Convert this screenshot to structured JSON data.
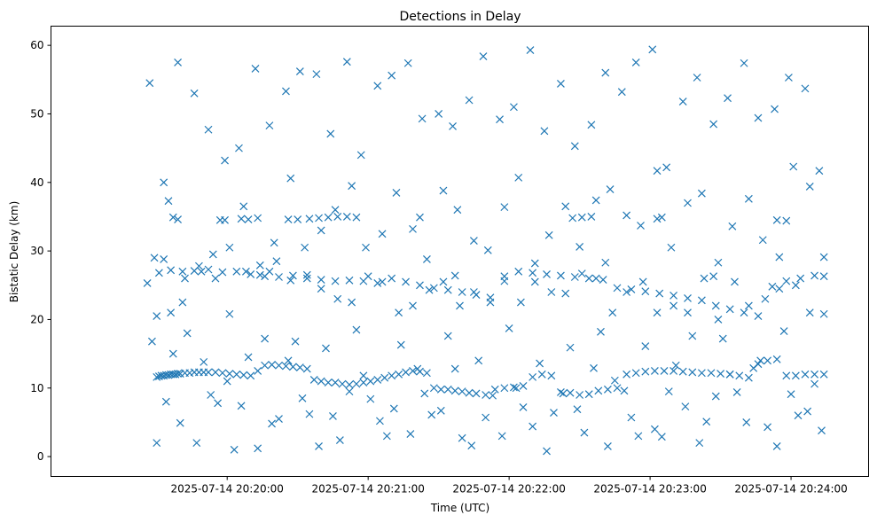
{
  "chart_data": {
    "type": "scatter",
    "title": "Detections in Delay",
    "xlabel": "Time (UTC)",
    "ylabel": "Bistatic Delay (km)",
    "x_unit": "time (UTC)",
    "xlim": [
      "2025-07-14 20:18:45",
      "2025-07-14 20:24:33"
    ],
    "ylim": [
      -2.9,
      62.8
    ],
    "x_ticks": [
      "2025-07-14 20:20:00",
      "2025-07-14 20:21:00",
      "2025-07-14 20:22:00",
      "2025-07-14 20:23:00",
      "2025-07-14 20:24:00"
    ],
    "y_ticks": [
      0,
      10,
      20,
      30,
      40,
      50,
      60
    ],
    "grid": false,
    "marker": "x",
    "color": "#1f77b4",
    "series": [
      {
        "x": [
          "2025-07-14 20:19:30",
          "2025-07-14 20:19:31",
          "2025-07-14 20:19:32",
          "2025-07-14 20:19:33",
          "2025-07-14 20:19:34",
          "2025-07-14 20:19:35",
          "2025-07-14 20:19:36",
          "2025-07-14 20:19:37",
          "2025-07-14 20:19:38",
          "2025-07-14 20:19:39",
          "2025-07-14 20:19:40",
          "2025-07-14 20:19:42",
          "2025-07-14 20:19:44",
          "2025-07-14 20:19:46",
          "2025-07-14 20:19:48",
          "2025-07-14 20:19:50",
          "2025-07-14 20:19:52",
          "2025-07-14 20:19:55",
          "2025-07-14 20:19:58",
          "2025-07-14 20:20:01",
          "2025-07-14 20:20:04",
          "2025-07-14 20:20:07",
          "2025-07-14 20:20:10",
          "2025-07-14 20:20:13",
          "2025-07-14 20:20:16",
          "2025-07-14 20:20:19",
          "2025-07-14 20:20:22",
          "2025-07-14 20:20:25",
          "2025-07-14 20:20:28",
          "2025-07-14 20:20:31",
          "2025-07-14 20:20:34",
          "2025-07-14 20:20:37",
          "2025-07-14 20:20:40",
          "2025-07-14 20:20:43",
          "2025-07-14 20:20:46",
          "2025-07-14 20:20:49",
          "2025-07-14 20:20:52",
          "2025-07-14 20:20:55",
          "2025-07-14 20:20:58",
          "2025-07-14 20:21:01",
          "2025-07-14 20:21:04",
          "2025-07-14 20:21:07",
          "2025-07-14 20:21:10",
          "2025-07-14 20:21:13",
          "2025-07-14 20:21:16",
          "2025-07-14 20:21:19",
          "2025-07-14 20:21:22",
          "2025-07-14 20:21:25",
          "2025-07-14 20:21:28",
          "2025-07-14 20:21:31",
          "2025-07-14 20:21:34",
          "2025-07-14 20:21:37",
          "2025-07-14 20:21:40",
          "2025-07-14 20:21:43",
          "2025-07-14 20:21:46",
          "2025-07-14 20:21:50",
          "2025-07-14 20:21:54",
          "2025-07-14 20:21:58",
          "2025-07-14 20:22:02",
          "2025-07-14 20:22:06",
          "2025-07-14 20:22:10",
          "2025-07-14 20:22:14",
          "2025-07-14 20:22:18",
          "2025-07-14 20:22:22",
          "2025-07-14 20:22:26",
          "2025-07-14 20:22:30",
          "2025-07-14 20:22:34",
          "2025-07-14 20:22:38",
          "2025-07-14 20:22:42",
          "2025-07-14 20:22:46",
          "2025-07-14 20:22:50",
          "2025-07-14 20:22:54",
          "2025-07-14 20:22:58",
          "2025-07-14 20:23:02",
          "2025-07-14 20:23:06",
          "2025-07-14 20:23:10",
          "2025-07-14 20:23:14",
          "2025-07-14 20:23:18",
          "2025-07-14 20:23:22",
          "2025-07-14 20:23:26",
          "2025-07-14 20:23:30",
          "2025-07-14 20:23:34",
          "2025-07-14 20:23:38",
          "2025-07-14 20:23:42",
          "2025-07-14 20:23:46",
          "2025-07-14 20:23:50",
          "2025-07-14 20:23:54",
          "2025-07-14 20:23:58",
          "2025-07-14 20:24:02",
          "2025-07-14 20:24:06",
          "2025-07-14 20:24:10",
          "2025-07-14 20:24:14",
          "2025-07-14 20:19:31",
          "2025-07-14 20:19:36",
          "2025-07-14 20:19:41",
          "2025-07-14 20:19:46",
          "2025-07-14 20:19:52",
          "2025-07-14 20:19:58",
          "2025-07-14 20:20:04",
          "2025-07-14 20:20:10",
          "2025-07-14 20:20:16",
          "2025-07-14 20:20:22",
          "2025-07-14 20:20:28",
          "2025-07-14 20:20:34",
          "2025-07-14 20:20:40",
          "2025-07-14 20:20:46",
          "2025-07-14 20:20:52",
          "2025-07-14 20:20:58",
          "2025-07-14 20:21:04",
          "2025-07-14 20:21:10",
          "2025-07-14 20:21:16",
          "2025-07-14 20:21:22",
          "2025-07-14 20:21:28",
          "2025-07-14 20:21:34",
          "2025-07-14 20:21:40",
          "2025-07-14 20:21:46",
          "2025-07-14 20:21:52",
          "2025-07-14 20:21:58",
          "2025-07-14 20:22:04",
          "2025-07-14 20:22:10",
          "2025-07-14 20:22:16",
          "2025-07-14 20:22:22",
          "2025-07-14 20:22:28",
          "2025-07-14 20:22:34",
          "2025-07-14 20:22:40",
          "2025-07-14 20:22:46",
          "2025-07-14 20:22:52",
          "2025-07-14 20:22:58",
          "2025-07-14 20:23:04",
          "2025-07-14 20:23:10",
          "2025-07-14 20:23:16",
          "2025-07-14 20:23:22",
          "2025-07-14 20:23:28",
          "2025-07-14 20:23:34",
          "2025-07-14 20:23:40",
          "2025-07-14 20:23:46",
          "2025-07-14 20:23:52",
          "2025-07-14 20:23:58",
          "2025-07-14 20:24:04",
          "2025-07-14 20:24:10",
          "2025-07-14 20:24:14",
          "2025-07-14 20:19:37",
          "2025-07-14 20:19:39",
          "2025-07-14 20:19:57",
          "2025-07-14 20:19:59",
          "2025-07-14 20:20:06",
          "2025-07-14 20:20:09",
          "2025-07-14 20:20:13",
          "2025-07-14 20:20:26",
          "2025-07-14 20:20:30",
          "2025-07-14 20:20:35",
          "2025-07-14 20:20:39",
          "2025-07-14 20:20:43",
          "2025-07-14 20:20:47",
          "2025-07-14 20:20:51",
          "2025-07-14 20:20:55",
          "2025-07-14 20:21:22",
          "2025-07-14 20:22:27",
          "2025-07-14 20:22:31",
          "2025-07-14 20:22:35",
          "2025-07-14 20:23:03",
          "2025-07-14 20:23:05",
          "2025-07-14 20:23:54",
          "2025-07-14 20:23:58",
          "2025-07-14 20:19:26",
          "2025-07-14 20:19:30",
          "2025-07-14 20:19:36",
          "2025-07-14 20:19:42",
          "2025-07-14 20:19:49",
          "2025-07-14 20:19:55",
          "2025-07-14 20:20:01",
          "2025-07-14 20:20:08",
          "2025-07-14 20:20:14",
          "2025-07-14 20:20:21",
          "2025-07-14 20:20:27",
          "2025-07-14 20:20:34",
          "2025-07-14 20:20:40",
          "2025-07-14 20:20:47",
          "2025-07-14 20:20:53",
          "2025-07-14 20:21:00",
          "2025-07-14 20:21:06",
          "2025-07-14 20:21:13",
          "2025-07-14 20:21:19",
          "2025-07-14 20:21:26",
          "2025-07-14 20:21:32",
          "2025-07-14 20:21:39",
          "2025-07-14 20:21:45",
          "2025-07-14 20:21:52",
          "2025-07-14 20:21:58",
          "2025-07-14 20:22:05",
          "2025-07-14 20:22:11",
          "2025-07-14 20:22:18",
          "2025-07-14 20:22:24",
          "2025-07-14 20:22:31",
          "2025-07-14 20:22:37",
          "2025-07-14 20:22:44",
          "2025-07-14 20:22:50",
          "2025-07-14 20:22:57",
          "2025-07-14 20:23:03",
          "2025-07-14 20:23:10",
          "2025-07-14 20:23:16",
          "2025-07-14 20:23:23",
          "2025-07-14 20:23:29",
          "2025-07-14 20:23:36",
          "2025-07-14 20:23:42",
          "2025-07-14 20:23:49",
          "2025-07-14 20:23:55",
          "2025-07-14 20:24:02",
          "2025-07-14 20:24:08",
          "2025-07-14 20:24:14",
          "2025-07-14 20:19:33",
          "2025-07-14 20:20:18",
          "2025-07-14 20:21:37",
          "2025-07-14 20:22:41",
          "2025-07-14 20:23:27",
          "2025-07-14 20:19:28",
          "2025-07-14 20:19:34",
          "2025-07-14 20:19:40",
          "2025-07-14 20:19:47",
          "2025-07-14 20:19:53",
          "2025-07-14 20:20:00",
          "2025-07-14 20:20:06",
          "2025-07-14 20:20:13",
          "2025-07-14 20:20:19",
          "2025-07-14 20:20:26",
          "2025-07-14 20:20:32",
          "2025-07-14 20:20:39",
          "2025-07-14 20:20:45",
          "2025-07-14 20:20:52",
          "2025-07-14 20:20:58",
          "2025-07-14 20:21:05",
          "2025-07-14 20:21:11",
          "2025-07-14 20:21:18",
          "2025-07-14 20:21:24",
          "2025-07-14 20:21:31",
          "2025-07-14 20:21:37",
          "2025-07-14 20:21:44",
          "2025-07-14 20:21:50",
          "2025-07-14 20:21:57",
          "2025-07-14 20:22:03",
          "2025-07-14 20:22:10",
          "2025-07-14 20:22:16",
          "2025-07-14 20:22:23",
          "2025-07-14 20:22:29",
          "2025-07-14 20:22:36",
          "2025-07-14 20:22:42",
          "2025-07-14 20:22:49",
          "2025-07-14 20:22:55",
          "2025-07-14 20:23:02",
          "2025-07-14 20:23:08",
          "2025-07-14 20:23:15",
          "2025-07-14 20:23:21",
          "2025-07-14 20:23:28",
          "2025-07-14 20:23:34",
          "2025-07-14 20:23:41",
          "2025-07-14 20:23:47",
          "2025-07-14 20:23:54",
          "2025-07-14 20:24:00",
          "2025-07-14 20:24:07",
          "2025-07-14 20:24:13",
          "2025-07-14 20:19:29",
          "2025-07-14 20:19:35",
          "2025-07-14 20:19:41",
          "2025-07-14 20:19:48",
          "2025-07-14 20:19:54",
          "2025-07-14 20:20:01",
          "2025-07-14 20:20:07",
          "2025-07-14 20:20:14",
          "2025-07-14 20:20:20",
          "2025-07-14 20:20:27",
          "2025-07-14 20:20:33",
          "2025-07-14 20:20:40",
          "2025-07-14 20:20:46",
          "2025-07-14 20:20:53",
          "2025-07-14 20:20:59",
          "2025-07-14 20:21:06",
          "2025-07-14 20:21:12",
          "2025-07-14 20:21:19",
          "2025-07-14 20:21:25",
          "2025-07-14 20:21:32",
          "2025-07-14 20:21:38",
          "2025-07-14 20:21:45",
          "2025-07-14 20:21:51",
          "2025-07-14 20:21:58",
          "2025-07-14 20:22:04",
          "2025-07-14 20:22:11",
          "2025-07-14 20:22:17",
          "2025-07-14 20:22:24",
          "2025-07-14 20:22:30",
          "2025-07-14 20:22:37",
          "2025-07-14 20:22:43",
          "2025-07-14 20:22:50",
          "2025-07-14 20:22:56",
          "2025-07-14 20:23:03",
          "2025-07-14 20:23:09",
          "2025-07-14 20:23:16",
          "2025-07-14 20:23:22",
          "2025-07-14 20:23:29",
          "2025-07-14 20:23:35",
          "2025-07-14 20:23:42",
          "2025-07-14 20:23:48",
          "2025-07-14 20:23:55",
          "2025-07-14 20:24:01",
          "2025-07-14 20:24:08",
          "2025-07-14 20:24:14",
          "2025-07-14 20:19:27",
          "2025-07-14 20:19:33",
          "2025-07-14 20:19:39",
          "2025-07-14 20:19:46",
          "2025-07-14 20:19:52",
          "2025-07-14 20:19:59",
          "2025-07-14 20:20:05",
          "2025-07-14 20:20:12",
          "2025-07-14 20:20:18",
          "2025-07-14 20:20:25",
          "2025-07-14 20:20:31",
          "2025-07-14 20:20:38",
          "2025-07-14 20:20:44",
          "2025-07-14 20:20:51",
          "2025-07-14 20:20:57",
          "2025-07-14 20:21:04",
          "2025-07-14 20:21:10",
          "2025-07-14 20:21:17",
          "2025-07-14 20:21:23",
          "2025-07-14 20:21:30",
          "2025-07-14 20:21:36",
          "2025-07-14 20:21:43",
          "2025-07-14 20:21:49",
          "2025-07-14 20:21:56",
          "2025-07-14 20:22:02",
          "2025-07-14 20:22:09",
          "2025-07-14 20:22:15",
          "2025-07-14 20:22:22",
          "2025-07-14 20:22:28",
          "2025-07-14 20:22:35",
          "2025-07-14 20:22:41",
          "2025-07-14 20:22:48",
          "2025-07-14 20:22:54",
          "2025-07-14 20:23:01",
          "2025-07-14 20:23:07",
          "2025-07-14 20:23:14",
          "2025-07-14 20:23:20",
          "2025-07-14 20:23:27",
          "2025-07-14 20:23:33",
          "2025-07-14 20:23:40",
          "2025-07-14 20:23:46",
          "2025-07-14 20:23:53",
          "2025-07-14 20:23:59",
          "2025-07-14 20:24:06",
          "2025-07-14 20:24:12",
          "2025-07-14 20:19:30",
          "2025-07-14 20:19:37",
          "2025-07-14 20:19:43",
          "2025-07-14 20:19:50",
          "2025-07-14 20:19:56",
          "2025-07-14 20:20:03",
          "2025-07-14 20:20:09",
          "2025-07-14 20:20:16",
          "2025-07-14 20:20:22",
          "2025-07-14 20:20:29",
          "2025-07-14 20:20:35",
          "2025-07-14 20:20:42",
          "2025-07-14 20:20:48",
          "2025-07-14 20:20:55",
          "2025-07-14 20:21:01",
          "2025-07-14 20:21:08",
          "2025-07-14 20:21:14",
          "2025-07-14 20:21:21",
          "2025-07-14 20:21:27",
          "2025-07-14 20:21:34",
          "2025-07-14 20:21:40",
          "2025-07-14 20:21:47",
          "2025-07-14 20:21:53",
          "2025-07-14 20:22:00",
          "2025-07-14 20:22:06",
          "2025-07-14 20:22:13",
          "2025-07-14 20:22:19",
          "2025-07-14 20:22:26",
          "2025-07-14 20:22:32",
          "2025-07-14 20:22:39",
          "2025-07-14 20:22:45",
          "2025-07-14 20:22:52",
          "2025-07-14 20:22:58",
          "2025-07-14 20:23:05",
          "2025-07-14 20:23:11",
          "2025-07-14 20:23:18",
          "2025-07-14 20:23:24",
          "2025-07-14 20:23:31",
          "2025-07-14 20:23:37",
          "2025-07-14 20:23:44",
          "2025-07-14 20:23:50",
          "2025-07-14 20:23:57",
          "2025-07-14 20:24:03",
          "2025-07-14 20:24:10"
        ],
        "y": [
          11.6,
          11.7,
          11.8,
          11.8,
          11.9,
          11.9,
          12.0,
          12.0,
          12.0,
          12.1,
          12.1,
          12.2,
          12.2,
          12.3,
          12.3,
          12.3,
          12.3,
          12.3,
          12.2,
          12.1,
          12.0,
          11.9,
          11.8,
          12.5,
          13.3,
          13.4,
          13.3,
          13.2,
          13.1,
          13.0,
          12.8,
          11.2,
          11.0,
          10.8,
          10.8,
          10.6,
          10.5,
          10.6,
          10.8,
          11.0,
          11.2,
          11.5,
          11.8,
          12.0,
          12.3,
          12.5,
          12.4,
          12.2,
          10.0,
          9.8,
          9.8,
          9.6,
          9.5,
          9.3,
          9.2,
          9.0,
          9.8,
          10.0,
          10.1,
          10.3,
          11.6,
          12.0,
          11.8,
          9.4,
          9.3,
          9.0,
          9.1,
          9.6,
          9.8,
          10.0,
          12.0,
          12.2,
          12.4,
          12.5,
          12.5,
          12.5,
          12.4,
          12.3,
          12.2,
          12.2,
          12.1,
          12.0,
          11.8,
          11.5,
          13.5,
          14.0,
          14.2,
          11.8,
          11.8,
          12.0,
          12.0,
          12.0,
          26.8,
          27.2,
          27.0,
          27.1,
          27.3,
          26.9,
          27.0,
          26.6,
          26.3,
          26.2,
          26.4,
          26.0,
          25.8,
          25.6,
          25.7,
          25.6,
          25.3,
          26.0,
          25.5,
          25.0,
          24.6,
          24.3,
          24.0,
          23.6,
          23.2,
          25.6,
          27.0,
          26.8,
          26.6,
          26.4,
          26.2,
          26.0,
          25.8,
          24.6,
          24.4,
          24.1,
          23.8,
          23.5,
          23.1,
          22.8,
          22.0,
          21.5,
          21.0,
          20.5,
          24.8,
          25.6,
          26.0,
          26.4,
          26.3,
          34.9,
          34.6,
          34.5,
          34.5,
          34.7,
          34.6,
          34.8,
          34.6,
          34.6,
          34.7,
          34.8,
          34.9,
          35.0,
          35.0,
          34.9,
          34.9,
          34.8,
          34.9,
          35.0,
          34.7,
          34.9,
          34.5,
          34.4,
          25.3,
          20.5,
          21.0,
          26.0,
          27.0,
          26.0,
          20.8,
          27.0,
          26.5,
          28.5,
          25.7,
          26.5,
          24.5,
          23.0,
          22.5,
          26.3,
          25.5,
          21.0,
          22.0,
          24.3,
          25.5,
          22.0,
          24.0,
          22.5,
          26.3,
          22.5,
          25.5,
          24.0,
          23.8,
          26.7,
          26.0,
          21.0,
          24.0,
          25.5,
          21.0,
          22.0,
          21.0,
          26.0,
          20.0,
          25.5,
          22.0,
          23.0,
          24.5,
          25.0,
          21.0,
          20.8,
          28.8,
          27.0,
          26.4,
          28.3,
          26.3,
          16.8,
          8.0,
          4.9,
          2.0,
          9.0,
          11.0,
          7.4,
          1.2,
          4.8,
          14.0,
          8.5,
          1.5,
          5.9,
          9.5,
          11.8,
          5.2,
          7.0,
          3.3,
          9.2,
          6.7,
          12.8,
          1.6,
          5.7,
          3.0,
          10.0,
          4.4,
          0.8,
          9.2,
          6.9,
          12.9,
          1.5,
          9.6,
          3.0,
          4.0,
          9.5,
          7.3,
          2.0,
          8.8,
          12.0,
          5.0,
          14.0,
          1.5,
          9.1,
          6.6,
          3.8,
          29.0,
          37.3,
          22.5,
          27.8,
          29.5,
          30.5,
          36.5,
          27.9,
          31.2,
          40.6,
          30.5,
          33.0,
          36.0,
          39.5,
          30.5,
          32.5,
          38.5,
          33.2,
          28.8,
          38.8,
          36.0,
          31.5,
          30.1,
          36.4,
          40.7,
          28.2,
          32.3,
          36.5,
          30.6,
          37.4,
          39.0,
          35.2,
          33.7,
          41.7,
          30.5,
          37.0,
          38.4,
          28.3,
          33.6,
          37.6,
          31.6,
          29.1,
          42.3,
          39.4,
          29.1,
          54.5,
          40.0,
          57.5,
          53.0,
          47.7,
          43.2,
          45.0,
          56.6,
          48.3,
          53.3,
          56.2,
          55.8,
          47.1,
          57.6,
          44.0,
          54.1,
          55.6,
          57.4,
          49.3,
          50.0,
          48.2,
          52.0,
          58.4,
          49.2,
          51.0,
          59.3,
          47.5,
          54.4,
          45.3,
          48.4,
          56.0,
          53.2,
          57.5,
          59.4,
          42.2,
          51.8,
          55.3,
          48.5,
          52.3,
          57.4,
          49.4,
          50.7,
          55.3,
          53.7,
          41.7,
          2.0,
          15.0,
          18.0,
          13.8,
          7.8,
          1.0,
          14.5,
          17.2,
          5.5,
          16.8,
          6.2,
          15.8,
          2.4,
          18.5,
          8.4,
          3.0,
          16.3,
          12.8,
          6.1,
          17.6,
          2.7,
          14.0,
          8.9,
          18.7,
          7.2,
          13.6,
          6.4,
          15.9,
          3.5,
          18.2,
          11.1,
          5.7,
          16.1,
          2.9,
          13.3,
          17.6,
          5.1,
          17.2,
          9.4,
          12.9,
          4.3,
          18.3,
          6.0,
          10.6
        ]
      }
    ]
  }
}
